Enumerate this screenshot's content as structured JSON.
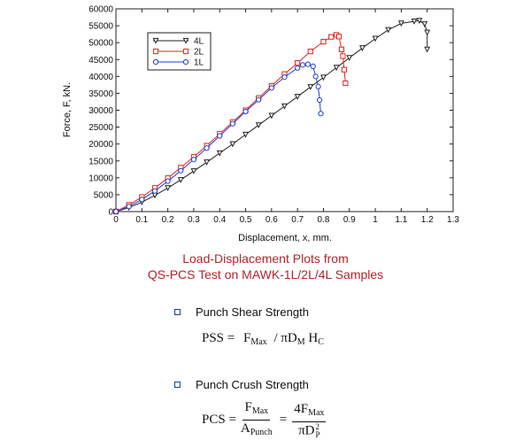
{
  "chart_data": {
    "type": "line",
    "title": "",
    "xlabel": "Displacement, x, mm.",
    "ylabel": "Force, F, kN.",
    "xlim": [
      0,
      1.3
    ],
    "ylim": [
      0,
      60000
    ],
    "xticks": [
      0,
      0.1,
      0.2,
      0.3,
      0.4,
      0.5,
      0.6,
      0.7,
      0.8,
      0.9,
      1,
      1.1,
      1.2,
      1.3
    ],
    "yticks": [
      0,
      5000,
      10000,
      15000,
      20000,
      25000,
      30000,
      35000,
      40000,
      45000,
      50000,
      55000,
      60000
    ],
    "grid": false,
    "legend_position": "top-left",
    "series": [
      {
        "name": "4L",
        "color": "#222222",
        "marker": "triangle-down",
        "points": [
          [
            0,
            0
          ],
          [
            0.05,
            1200
          ],
          [
            0.1,
            2800
          ],
          [
            0.15,
            4800
          ],
          [
            0.2,
            7000
          ],
          [
            0.25,
            9400
          ],
          [
            0.3,
            12000
          ],
          [
            0.35,
            14600
          ],
          [
            0.4,
            17300
          ],
          [
            0.45,
            20000
          ],
          [
            0.5,
            22800
          ],
          [
            0.55,
            25600
          ],
          [
            0.6,
            28400
          ],
          [
            0.65,
            31200
          ],
          [
            0.7,
            34000
          ],
          [
            0.75,
            36900
          ],
          [
            0.8,
            39700
          ],
          [
            0.85,
            42600
          ],
          [
            0.9,
            45500
          ],
          [
            0.95,
            48400
          ],
          [
            1.0,
            51200
          ],
          [
            1.05,
            53800
          ],
          [
            1.1,
            55700
          ],
          [
            1.15,
            56300
          ],
          [
            1.17,
            56500
          ],
          [
            1.19,
            55500
          ],
          [
            1.2,
            53000
          ],
          [
            1.2,
            48000
          ]
        ]
      },
      {
        "name": "2L",
        "color": "#e8201c",
        "marker": "square",
        "points": [
          [
            0,
            0
          ],
          [
            0.05,
            2000
          ],
          [
            0.1,
            4300
          ],
          [
            0.15,
            7000
          ],
          [
            0.2,
            9900
          ],
          [
            0.25,
            13000
          ],
          [
            0.3,
            16200
          ],
          [
            0.35,
            19500
          ],
          [
            0.4,
            23000
          ],
          [
            0.45,
            26500
          ],
          [
            0.5,
            30000
          ],
          [
            0.55,
            33600
          ],
          [
            0.6,
            37200
          ],
          [
            0.65,
            40700
          ],
          [
            0.7,
            44000
          ],
          [
            0.75,
            47400
          ],
          [
            0.8,
            50300
          ],
          [
            0.83,
            51700
          ],
          [
            0.85,
            52300
          ],
          [
            0.86,
            51800
          ],
          [
            0.87,
            48000
          ],
          [
            0.875,
            46000
          ],
          [
            0.88,
            42000
          ],
          [
            0.885,
            38000
          ]
        ]
      },
      {
        "name": "1L",
        "color": "#1f3fd0",
        "marker": "circle",
        "points": [
          [
            0,
            0
          ],
          [
            0.05,
            1500
          ],
          [
            0.1,
            3600
          ],
          [
            0.15,
            6100
          ],
          [
            0.2,
            9000
          ],
          [
            0.25,
            12100
          ],
          [
            0.3,
            15400
          ],
          [
            0.35,
            18800
          ],
          [
            0.4,
            22400
          ],
          [
            0.45,
            26000
          ],
          [
            0.5,
            29600
          ],
          [
            0.55,
            33100
          ],
          [
            0.6,
            36600
          ],
          [
            0.65,
            39800
          ],
          [
            0.7,
            42500
          ],
          [
            0.72,
            43400
          ],
          [
            0.74,
            43600
          ],
          [
            0.76,
            43000
          ],
          [
            0.77,
            40000
          ],
          [
            0.78,
            37000
          ],
          [
            0.785,
            33000
          ],
          [
            0.79,
            29000
          ]
        ]
      }
    ]
  },
  "caption": {
    "line1": "Load-Displacement Plots from",
    "line2": "QS-PCS Test on MAWK-1L/2L/4L Samples"
  },
  "notes": {
    "pss_heading": "Punch Shear Strength",
    "pcs_heading": "Punch Crush Strength"
  },
  "formulas": {
    "pss": {
      "lhs": "PSS =",
      "f": "F",
      "f_sub": "Max",
      "sep": "/ πD",
      "d_sub": "M",
      "h": "H",
      "h_sub": "C"
    },
    "pcs": {
      "lhs": "PCS =",
      "num1": "F",
      "num1_sub": "Max",
      "den1": "A",
      "den1_sub": "Punch",
      "eq": "=",
      "num2": "4F",
      "num2_sub": "Max",
      "den2": "πD",
      "den2_sup": "2",
      "den2_sub": "P"
    }
  }
}
